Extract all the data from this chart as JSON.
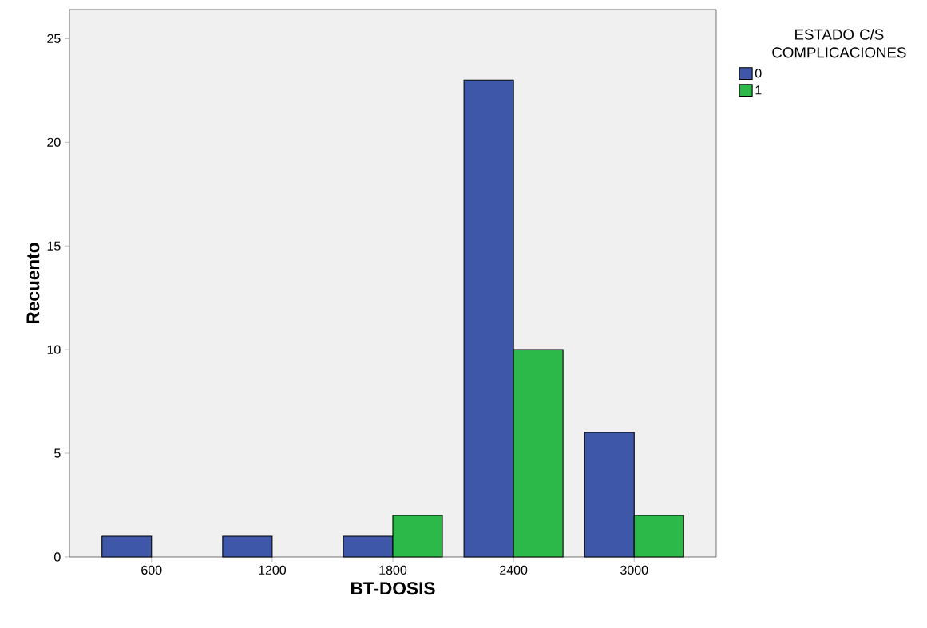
{
  "chart_data": {
    "type": "bar",
    "xlabel": "BT-DOSIS",
    "ylabel": "Recuento",
    "legend_title": "ESTADO C/S COMPLICACIONES",
    "categories": [
      "600",
      "1200",
      "1800",
      "2400",
      "3000"
    ],
    "series": [
      {
        "name": "0",
        "color": "#3f57a8",
        "values": [
          1,
          1,
          1,
          23,
          6
        ]
      },
      {
        "name": "1",
        "color": "#2db84a",
        "values": [
          null,
          null,
          2,
          10,
          2
        ]
      }
    ],
    "ylim": [
      0,
      26.4
    ],
    "yticks": [
      0,
      5,
      10,
      15,
      20,
      25
    ],
    "grid": false,
    "legend": "top right"
  }
}
